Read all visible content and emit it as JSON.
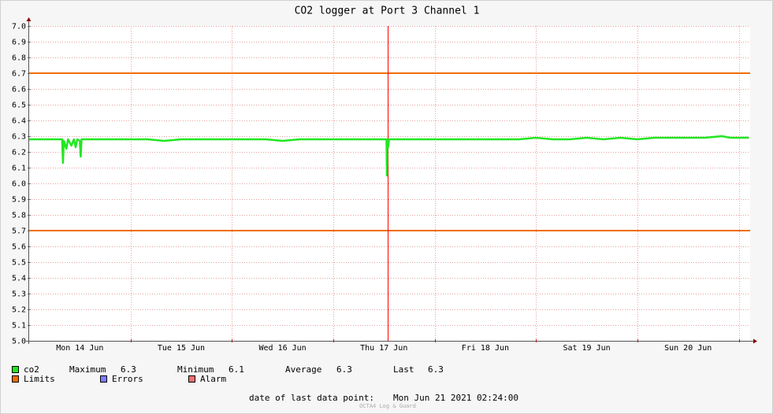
{
  "chart_data": {
    "type": "line",
    "title": "CO2 logger at Port 3 Channel 1",
    "xlim": [
      0,
      170.7
    ],
    "ylim": [
      5.0,
      7.0
    ],
    "xticks": [
      {
        "value": 12,
        "label": "Mon 14 Jun"
      },
      {
        "value": 36,
        "label": "Tue 15 Jun"
      },
      {
        "value": 60,
        "label": "Wed 16 Jun"
      },
      {
        "value": 84,
        "label": "Thu 17 Jun"
      },
      {
        "value": 108,
        "label": "Fri 18 Jun"
      },
      {
        "value": 132,
        "label": "Sat 19 Jun"
      },
      {
        "value": 156,
        "label": "Sun 20 Jun"
      }
    ],
    "xgrid": [
      24,
      48,
      72,
      96,
      120,
      144,
      168
    ],
    "yticks": [
      {
        "value": 5.0,
        "label": "5.0"
      },
      {
        "value": 5.1,
        "label": "5.1"
      },
      {
        "value": 5.2,
        "label": "5.2"
      },
      {
        "value": 5.3,
        "label": "5.3"
      },
      {
        "value": 5.4,
        "label": "5.4"
      },
      {
        "value": 5.5,
        "label": "5.5"
      },
      {
        "value": 5.6,
        "label": "5.6"
      },
      {
        "value": 5.7,
        "label": "5.7"
      },
      {
        "value": 5.8,
        "label": "5.8"
      },
      {
        "value": 5.9,
        "label": "5.9"
      },
      {
        "value": 6.0,
        "label": "6.0"
      },
      {
        "value": 6.1,
        "label": "6.1"
      },
      {
        "value": 6.2,
        "label": "6.2"
      },
      {
        "value": 6.3,
        "label": "6.3"
      },
      {
        "value": 6.4,
        "label": "6.4"
      },
      {
        "value": 6.5,
        "label": "6.5"
      },
      {
        "value": 6.6,
        "label": "6.6"
      },
      {
        "value": 6.7,
        "label": "6.7"
      },
      {
        "value": 6.8,
        "label": "6.8"
      },
      {
        "value": 6.9,
        "label": "6.9"
      },
      {
        "value": 7.0,
        "label": "7.0"
      }
    ],
    "grid": true,
    "vline_x": 84.8,
    "vline_color": "#ff0000",
    "limits": [
      6.7,
      5.7
    ],
    "limits_color": "#f06e00",
    "series": [
      {
        "name": "co2",
        "color": "#22e622",
        "x": [
          0,
          4,
          7.8,
          8.0,
          8.2,
          8.8,
          9.2,
          10,
          10.6,
          11,
          11.4,
          12,
          12.2,
          12.4,
          16,
          20,
          24,
          28,
          32,
          36,
          40,
          44,
          48,
          52,
          56,
          60,
          64,
          68,
          72,
          76,
          80,
          84.6,
          84.7,
          84.8,
          85,
          85.2,
          88,
          92,
          96,
          100,
          104,
          108,
          112,
          116,
          120,
          124,
          128,
          132,
          136,
          140,
          144,
          148,
          152,
          156,
          160,
          164,
          166,
          170.4
        ],
        "values": [
          6.28,
          6.28,
          6.28,
          6.13,
          6.27,
          6.22,
          6.28,
          6.24,
          6.28,
          6.23,
          6.28,
          6.27,
          6.17,
          6.28,
          6.28,
          6.28,
          6.28,
          6.28,
          6.27,
          6.28,
          6.28,
          6.28,
          6.28,
          6.28,
          6.28,
          6.27,
          6.28,
          6.28,
          6.28,
          6.28,
          6.28,
          6.28,
          6.05,
          6.28,
          6.23,
          6.28,
          6.28,
          6.28,
          6.28,
          6.28,
          6.28,
          6.28,
          6.28,
          6.28,
          6.29,
          6.28,
          6.28,
          6.29,
          6.28,
          6.29,
          6.28,
          6.29,
          6.29,
          6.29,
          6.29,
          6.3,
          6.29,
          6.29
        ]
      }
    ],
    "stats": [
      {
        "label": "Maximum",
        "value": 6.3
      },
      {
        "label": "Minimum",
        "value": 6.1
      },
      {
        "label": "Average",
        "value": 6.3
      },
      {
        "label": "Last",
        "value": 6.3
      }
    ],
    "legend_extra": [
      {
        "name": "Limits",
        "color": "#f06e00"
      },
      {
        "name": "Errors",
        "color": "#7f7fff"
      },
      {
        "name": "Alarm",
        "color": "#f07070"
      }
    ],
    "footer_label": "date of last data point:",
    "footer_value": "Mon Jun 21 2021 02:24:00",
    "watermark": "OCTA4 Log & Guard"
  }
}
